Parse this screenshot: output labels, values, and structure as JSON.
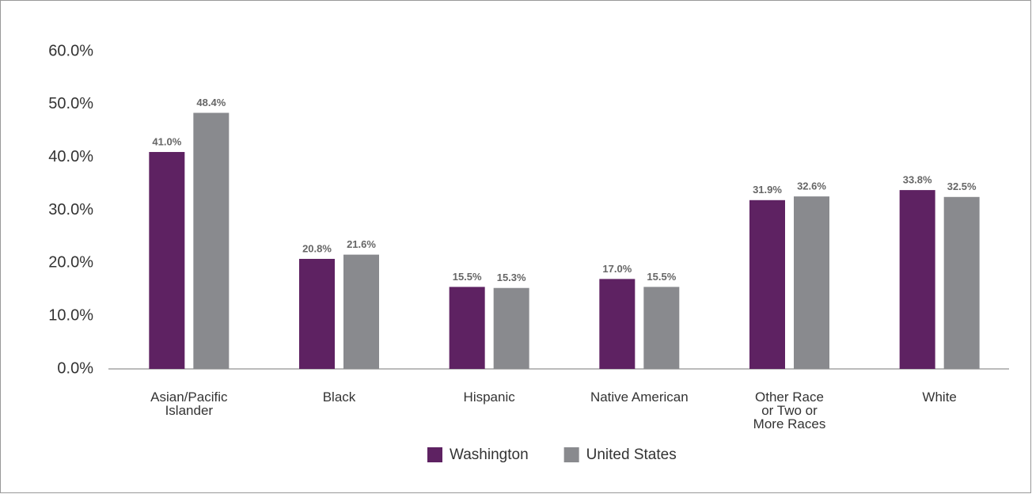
{
  "chart_data": {
    "type": "bar",
    "categories": [
      "Asian/Pacific Islander",
      "Black",
      "Hispanic",
      "Native American",
      "Other Race or Two or More Races",
      "White"
    ],
    "series": [
      {
        "name": "Washington",
        "color": "#5e2262",
        "values": [
          41.0,
          20.8,
          15.5,
          17.0,
          31.9,
          33.8
        ],
        "value_labels": [
          "41.0%",
          "20.8%",
          "15.5%",
          "17.0%",
          "31.9%",
          "33.8%"
        ]
      },
      {
        "name": "United States",
        "color": "#898a8e",
        "values": [
          48.4,
          21.6,
          15.3,
          15.5,
          32.6,
          32.5
        ],
        "value_labels": [
          "48.4%",
          "21.6%",
          "15.3%",
          "15.5%",
          "32.6%",
          "32.5%"
        ]
      }
    ],
    "ylim": [
      0,
      60
    ],
    "yticks": [
      {
        "value": 0,
        "label": "0.0%"
      },
      {
        "value": 10,
        "label": "10.0%"
      },
      {
        "value": 20,
        "label": "20.0%"
      },
      {
        "value": 30,
        "label": "30.0%"
      },
      {
        "value": 40,
        "label": "40.0%"
      },
      {
        "value": 50,
        "label": "50.0%"
      },
      {
        "value": 60,
        "label": "60.0%"
      }
    ],
    "grid": false,
    "legend": "bottom"
  }
}
